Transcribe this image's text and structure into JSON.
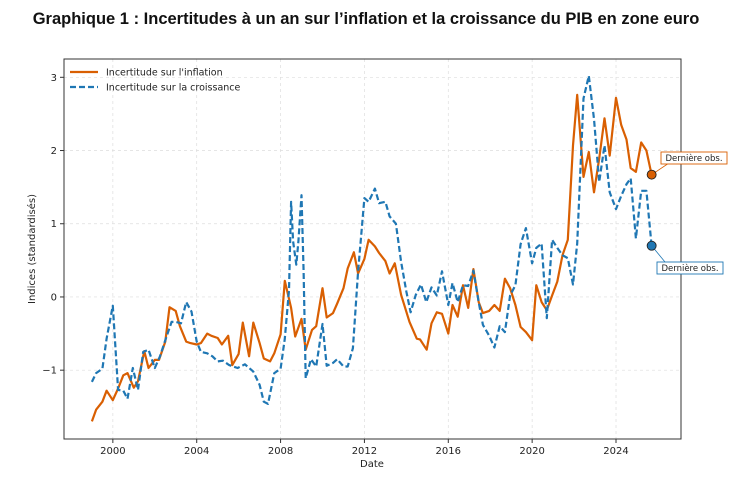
{
  "chart_data": {
    "type": "line",
    "title": "Graphique 1 : Incertitudes à un an sur l’inflation et la croissance du PIB en zone euro",
    "xlabel": "Date",
    "ylabel": "Indices (standardisés)",
    "xlim": [
      1997.67,
      2027.1
    ],
    "ylim": [
      -1.94,
      3.25
    ],
    "xticks": [
      2000,
      2004,
      2008,
      2012,
      2016,
      2020,
      2024
    ],
    "yticks": [
      -1,
      0,
      1,
      2,
      3
    ],
    "ytick_labels": [
      "−1",
      "0",
      "1",
      "2",
      "3"
    ],
    "grid": true,
    "legend_position": "top-left",
    "series": [
      {
        "name": "Incertitude sur l'inflation",
        "color": "#d95f02",
        "style": "solid",
        "x": [
          1999.0,
          1999.2,
          1999.5,
          1999.7,
          2000.0,
          2000.25,
          2000.5,
          2000.7,
          2001.0,
          2001.2,
          2001.5,
          2001.7,
          2002.0,
          2002.2,
          2002.5,
          2002.7,
          2003.0,
          2003.2,
          2003.5,
          2003.7,
          2004.0,
          2004.2,
          2004.5,
          2004.7,
          2005.0,
          2005.2,
          2005.5,
          2005.7,
          2006.0,
          2006.2,
          2006.5,
          2006.7,
          2007.0,
          2007.2,
          2007.5,
          2007.7,
          2008.0,
          2008.2,
          2008.5,
          2008.7,
          2009.0,
          2009.2,
          2009.5,
          2009.7,
          2010.0,
          2010.2,
          2010.5,
          2010.7,
          2011.0,
          2011.2,
          2011.5,
          2011.7,
          2012.0,
          2012.2,
          2012.5,
          2012.7,
          2013.0,
          2013.2,
          2013.45,
          2013.75,
          2014.15,
          2014.5,
          2014.65,
          2014.97,
          2015.2,
          2015.45,
          2015.7,
          2016.0,
          2016.2,
          2016.45,
          2016.7,
          2016.95,
          2017.2,
          2017.45,
          2017.65,
          2017.95,
          2018.2,
          2018.45,
          2018.7,
          2018.95,
          2019.2,
          2019.45,
          2019.7,
          2020.0,
          2020.2,
          2020.45,
          2020.7,
          2020.95,
          2021.2,
          2021.45,
          2021.7,
          2021.95,
          2022.15,
          2022.45,
          2022.7,
          2022.95,
          2023.2,
          2023.45,
          2023.7,
          2024.0,
          2024.25,
          2024.5,
          2024.7,
          2024.95,
          2025.2,
          2025.45,
          2025.7
        ],
        "y": [
          -1.7,
          -1.54,
          -1.43,
          -1.28,
          -1.41,
          -1.25,
          -1.07,
          -1.04,
          -1.24,
          -1.15,
          -0.74,
          -0.97,
          -0.86,
          -0.86,
          -0.61,
          -0.14,
          -0.19,
          -0.4,
          -0.61,
          -0.63,
          -0.65,
          -0.63,
          -0.5,
          -0.53,
          -0.56,
          -0.65,
          -0.53,
          -0.93,
          -0.78,
          -0.35,
          -0.81,
          -0.35,
          -0.63,
          -0.84,
          -0.88,
          -0.77,
          -0.51,
          0.22,
          -0.15,
          -0.54,
          -0.3,
          -0.72,
          -0.45,
          -0.4,
          0.12,
          -0.28,
          -0.22,
          -0.09,
          0.12,
          0.39,
          0.61,
          0.32,
          0.52,
          0.78,
          0.69,
          0.6,
          0.49,
          0.32,
          0.46,
          0.03,
          -0.34,
          -0.57,
          -0.58,
          -0.72,
          -0.36,
          -0.21,
          -0.23,
          -0.5,
          -0.11,
          -0.27,
          0.16,
          -0.15,
          0.38,
          -0.07,
          -0.22,
          -0.19,
          -0.11,
          -0.19,
          0.25,
          0.12,
          -0.11,
          -0.41,
          -0.48,
          -0.59,
          0.16,
          -0.07,
          -0.18,
          0.02,
          0.21,
          0.57,
          0.78,
          2.07,
          2.76,
          1.64,
          1.98,
          1.43,
          1.89,
          2.44,
          1.93,
          2.72,
          2.35,
          2.15,
          1.76,
          1.71,
          2.11,
          2.0,
          1.67
        ]
      },
      {
        "name": "Incertitude sur la croissance",
        "color": "#1f77b4",
        "style": "dashed",
        "x": [
          1999.0,
          1999.2,
          1999.5,
          1999.7,
          2000.0,
          2000.25,
          2000.5,
          2000.7,
          2000.95,
          2001.2,
          2001.45,
          2001.7,
          2002.0,
          2002.25,
          2002.5,
          2002.8,
          2003.0,
          2003.25,
          2003.5,
          2003.75,
          2004.0,
          2004.2,
          2004.5,
          2004.75,
          2005.0,
          2005.25,
          2005.55,
          2005.95,
          2006.3,
          2006.7,
          2007.0,
          2007.2,
          2007.4,
          2007.7,
          2008.0,
          2008.2,
          2008.4,
          2008.5,
          2008.6,
          2008.75,
          2008.85,
          2009.0,
          2009.1,
          2009.2,
          2009.45,
          2009.7,
          2010.0,
          2010.2,
          2010.5,
          2010.7,
          2011.0,
          2011.2,
          2011.45,
          2011.7,
          2012.0,
          2012.2,
          2012.5,
          2012.7,
          2013.0,
          2013.2,
          2013.5,
          2013.75,
          2014.0,
          2014.2,
          2014.45,
          2014.7,
          2014.95,
          2015.2,
          2015.45,
          2015.7,
          2016.0,
          2016.2,
          2016.45,
          2016.7,
          2016.95,
          2017.2,
          2017.45,
          2017.65,
          2017.95,
          2018.2,
          2018.45,
          2018.7,
          2018.95,
          2019.2,
          2019.45,
          2019.7,
          2020.0,
          2020.2,
          2020.45,
          2020.7,
          2020.95,
          2021.2,
          2021.45,
          2021.7,
          2021.95,
          2022.15,
          2022.45,
          2022.7,
          2022.95,
          2023.2,
          2023.45,
          2023.7,
          2024.0,
          2024.25,
          2024.5,
          2024.7,
          2024.95,
          2025.2,
          2025.45,
          2025.7
        ],
        "y": [
          -1.16,
          -1.04,
          -0.98,
          -0.57,
          -0.12,
          -1.27,
          -1.28,
          -1.39,
          -0.97,
          -1.27,
          -0.75,
          -0.72,
          -0.97,
          -0.81,
          -0.59,
          -0.34,
          -0.34,
          -0.36,
          -0.07,
          -0.2,
          -0.61,
          -0.75,
          -0.77,
          -0.81,
          -0.88,
          -0.87,
          -0.93,
          -0.97,
          -0.92,
          -1.02,
          -1.2,
          -1.43,
          -1.46,
          -1.04,
          -0.98,
          -0.57,
          0.09,
          1.3,
          0.76,
          0.44,
          0.76,
          1.39,
          0.35,
          -1.11,
          -0.85,
          -0.95,
          -0.37,
          -0.94,
          -0.9,
          -0.85,
          -0.95,
          -0.95,
          -0.7,
          0.35,
          1.35,
          1.3,
          1.48,
          1.28,
          1.3,
          1.1,
          1.0,
          0.48,
          0.07,
          -0.21,
          0.03,
          0.17,
          -0.07,
          0.13,
          0.02,
          0.35,
          -0.11,
          0.19,
          -0.07,
          0.16,
          0.15,
          0.36,
          -0.07,
          -0.38,
          -0.53,
          -0.69,
          -0.4,
          -0.48,
          0.02,
          0.16,
          0.72,
          0.94,
          0.46,
          0.67,
          0.73,
          -0.29,
          0.78,
          0.67,
          0.57,
          0.53,
          0.17,
          0.73,
          2.71,
          3.02,
          2.43,
          1.57,
          2.07,
          1.43,
          1.2,
          1.38,
          1.54,
          1.62,
          0.8,
          1.45,
          1.45,
          0.7
        ]
      }
    ],
    "annotations": [
      {
        "text": "Dernière obs.",
        "series": 0
      },
      {
        "text": "Dernière obs.",
        "series": 1
      }
    ]
  }
}
